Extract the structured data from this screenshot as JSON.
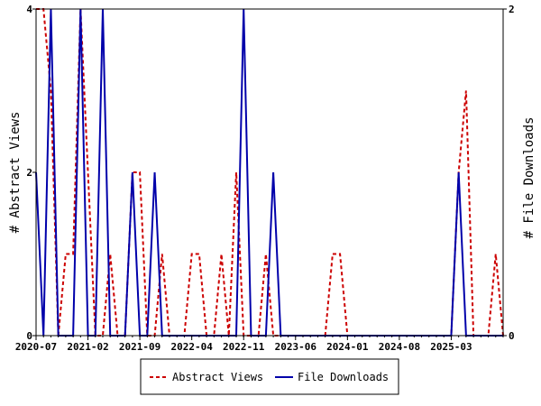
{
  "chart_data": {
    "type": "line",
    "x_unit": "month",
    "xlim": [
      "2020-07",
      "2025-10"
    ],
    "x_tick_labels": [
      "2020-07",
      "2021-02",
      "2021-09",
      "2022-04",
      "2022-11",
      "2023-06",
      "2024-01",
      "2024-08",
      "2025-03"
    ],
    "ylabel_left": "# Abstract Views",
    "ylabel_right": "# File Downloads",
    "ylim_left": [
      0,
      4
    ],
    "ylim_right": [
      0,
      2
    ],
    "y_ticks_left": [
      "0",
      "2",
      "4"
    ],
    "y_ticks_right": [
      "0",
      "2"
    ],
    "legend_position": "bottom",
    "series": [
      {
        "name": "Abstract Views",
        "axis": "left",
        "color": "#cc0000",
        "style": "dashed",
        "x": [
          "2020-07",
          "2020-08",
          "2020-09",
          "2020-10",
          "2020-11",
          "2020-12",
          "2021-01",
          "2021-02",
          "2021-03",
          "2021-04",
          "2021-05",
          "2021-06",
          "2021-07",
          "2021-08",
          "2021-09",
          "2021-10",
          "2021-11",
          "2021-12",
          "2022-01",
          "2022-02",
          "2022-03",
          "2022-04",
          "2022-05",
          "2022-06",
          "2022-07",
          "2022-08",
          "2022-09",
          "2022-10",
          "2022-11",
          "2022-12",
          "2023-01",
          "2023-02",
          "2023-03",
          "2023-04",
          "2023-05",
          "2023-06",
          "2023-07",
          "2023-08",
          "2023-09",
          "2023-10",
          "2023-11",
          "2023-12",
          "2024-01",
          "2024-02",
          "2024-03",
          "2024-04",
          "2024-05",
          "2024-06",
          "2024-07",
          "2024-08",
          "2024-09",
          "2024-10",
          "2024-11",
          "2024-12",
          "2025-01",
          "2025-02",
          "2025-03",
          "2025-04",
          "2025-05",
          "2025-06",
          "2025-07",
          "2025-08",
          "2025-09",
          "2025-10"
        ],
        "values": [
          4,
          4,
          3,
          0,
          1,
          1,
          4,
          2,
          0,
          0,
          1,
          0,
          0,
          2,
          2,
          0,
          0,
          1,
          0,
          0,
          0,
          1,
          1,
          0,
          0,
          1,
          0,
          2,
          0,
          0,
          0,
          1,
          0,
          0,
          0,
          0,
          0,
          0,
          0,
          0,
          1,
          1,
          0,
          0,
          0,
          0,
          0,
          0,
          0,
          0,
          0,
          0,
          0,
          0,
          0,
          0,
          0,
          2,
          3,
          0,
          0,
          0,
          1,
          0
        ]
      },
      {
        "name": "File Downloads",
        "axis": "right",
        "color": "#0000aa",
        "style": "solid",
        "x": [
          "2020-07",
          "2020-08",
          "2020-09",
          "2020-10",
          "2020-11",
          "2020-12",
          "2021-01",
          "2021-02",
          "2021-03",
          "2021-04",
          "2021-05",
          "2021-06",
          "2021-07",
          "2021-08",
          "2021-09",
          "2021-10",
          "2021-11",
          "2021-12",
          "2022-01",
          "2022-02",
          "2022-03",
          "2022-04",
          "2022-05",
          "2022-06",
          "2022-07",
          "2022-08",
          "2022-09",
          "2022-10",
          "2022-11",
          "2022-12",
          "2023-01",
          "2023-02",
          "2023-03",
          "2023-04",
          "2023-05",
          "2023-06",
          "2023-07",
          "2023-08",
          "2023-09",
          "2023-10",
          "2023-11",
          "2023-12",
          "2024-01",
          "2024-02",
          "2024-03",
          "2024-04",
          "2024-05",
          "2024-06",
          "2024-07",
          "2024-08",
          "2024-09",
          "2024-10",
          "2024-11",
          "2024-12",
          "2025-01",
          "2025-02",
          "2025-03",
          "2025-04",
          "2025-05",
          "2025-06",
          "2025-07",
          "2025-08",
          "2025-09",
          "2025-10"
        ],
        "values": [
          1,
          0,
          2,
          0,
          0,
          0,
          2,
          0,
          0,
          2,
          0,
          0,
          0,
          1,
          0,
          0,
          1,
          0,
          0,
          0,
          0,
          0,
          0,
          0,
          0,
          0,
          0,
          0,
          2,
          0,
          0,
          0,
          1,
          0,
          0,
          0,
          0,
          0,
          0,
          0,
          0,
          0,
          0,
          0,
          0,
          0,
          0,
          0,
          0,
          0,
          0,
          0,
          0,
          0,
          0,
          0,
          0,
          1,
          0,
          0,
          0,
          0,
          0,
          0
        ]
      }
    ]
  }
}
